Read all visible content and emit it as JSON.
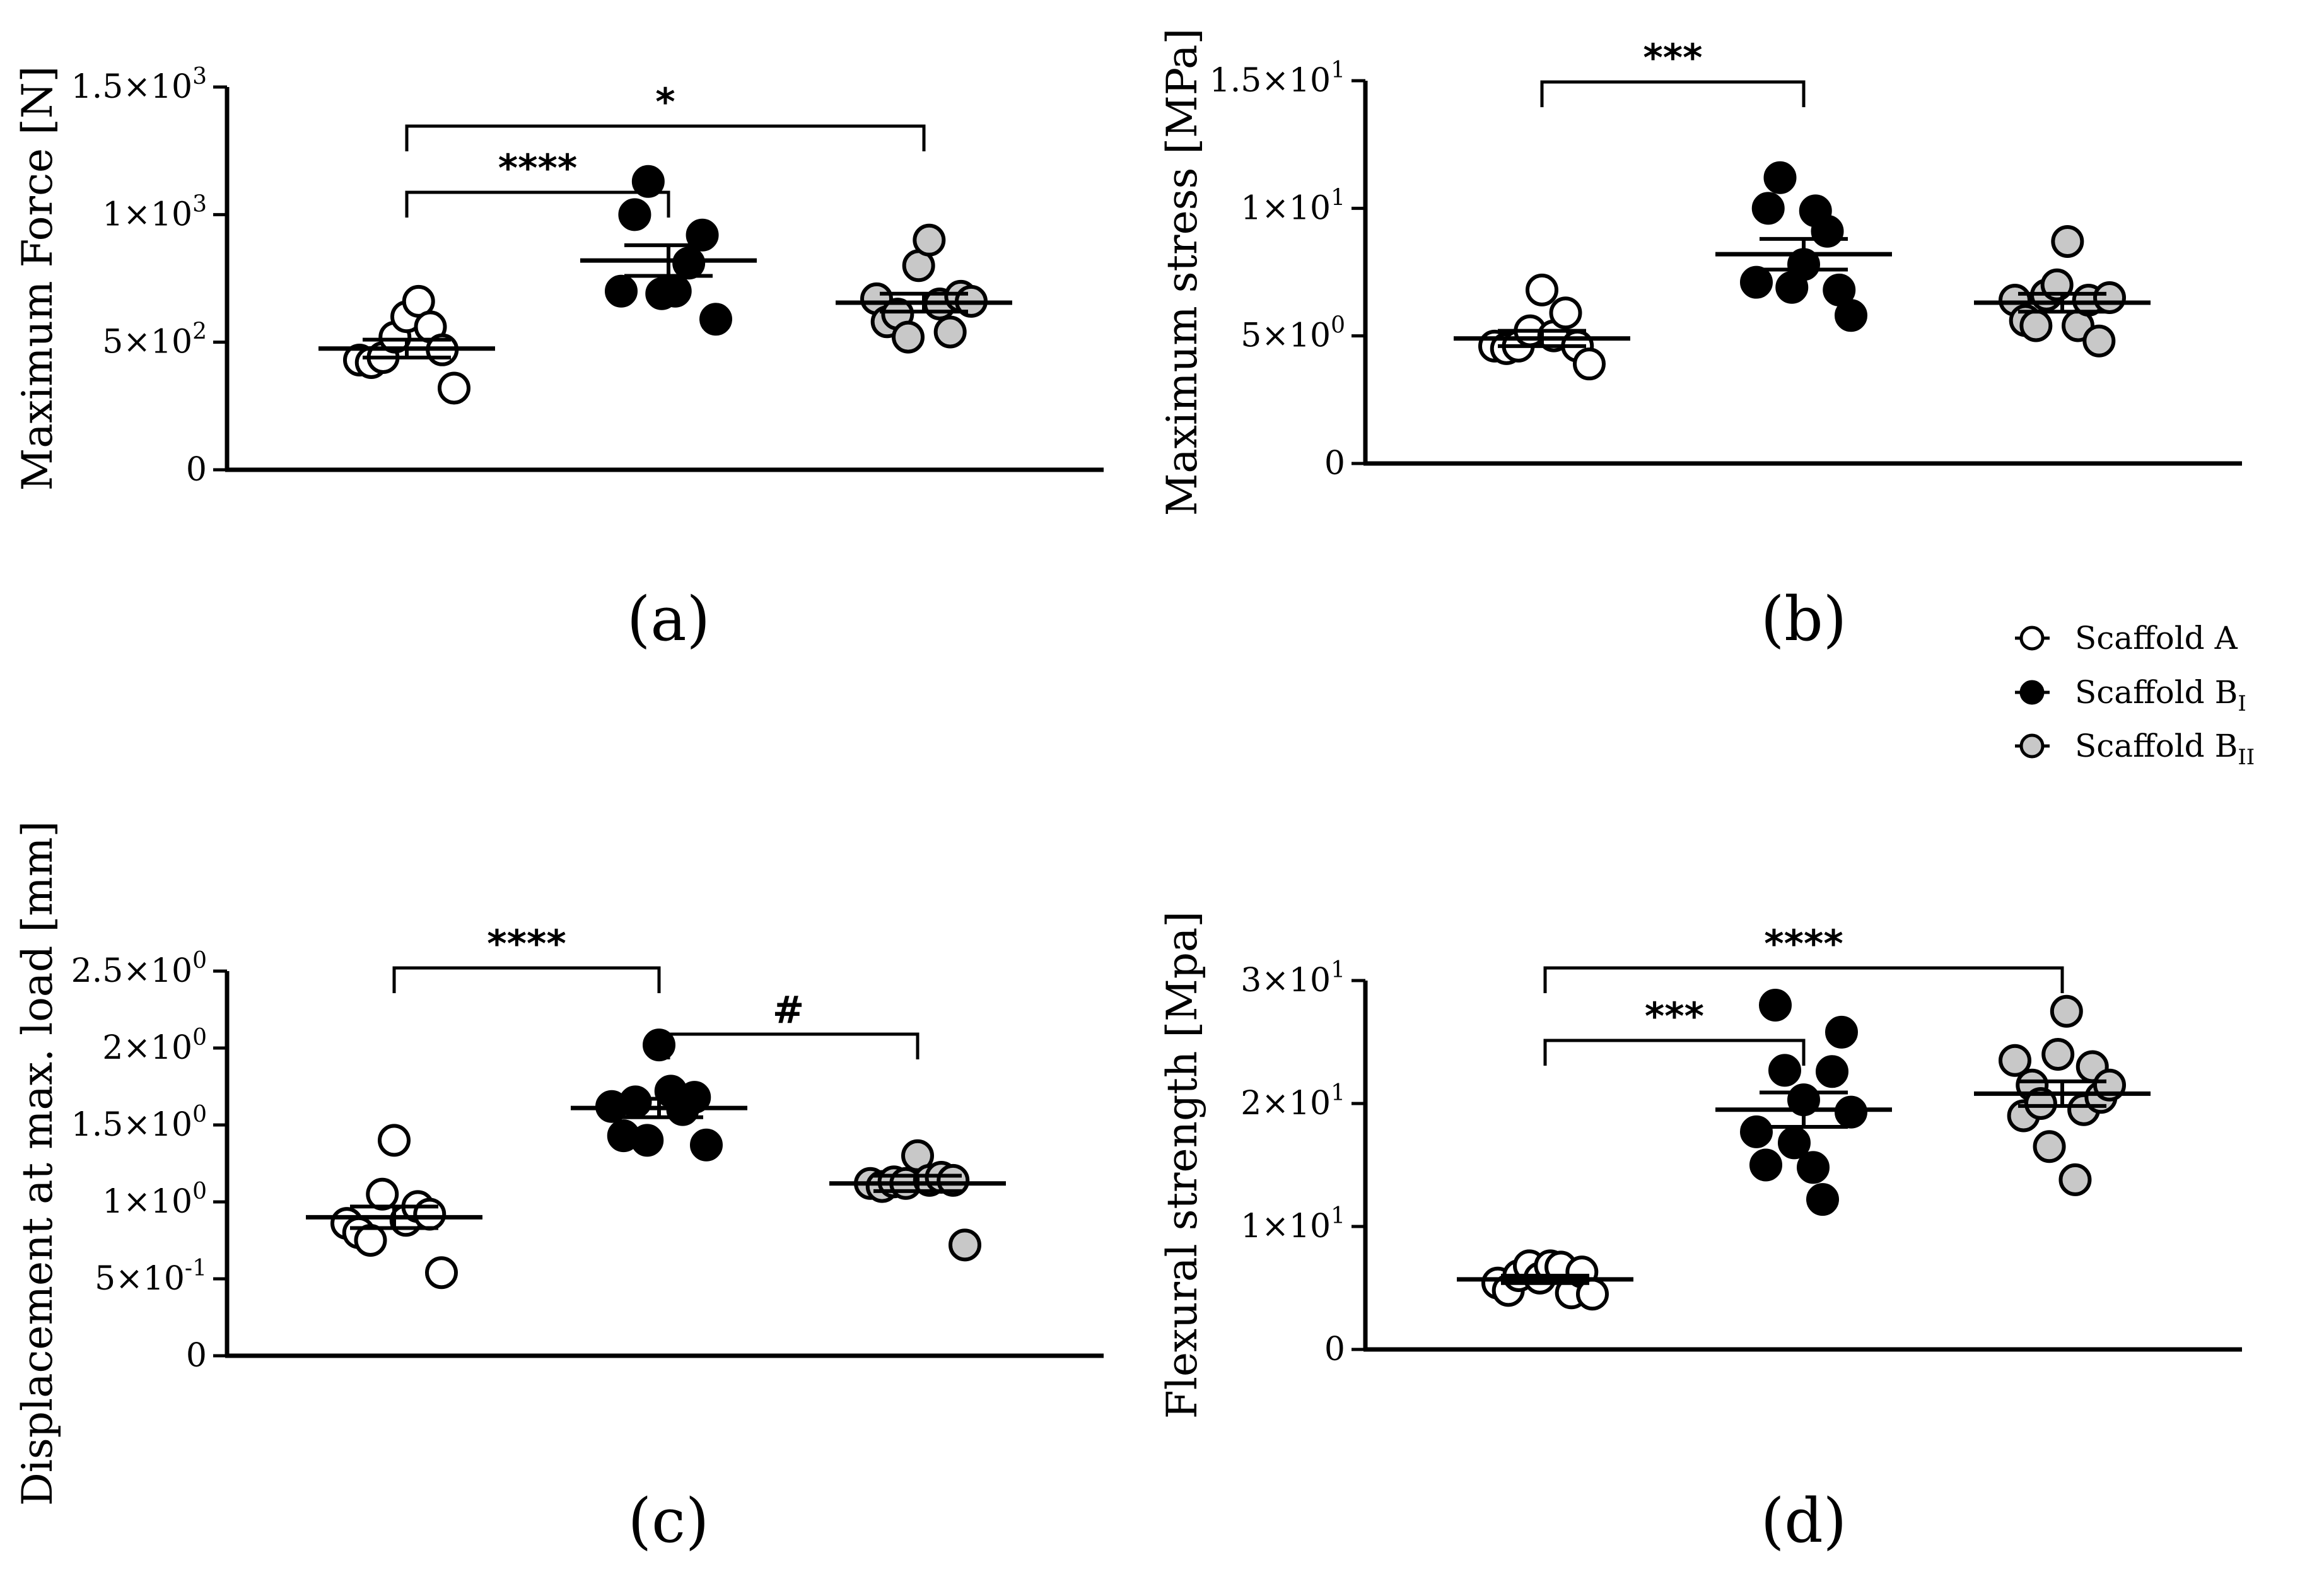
{
  "legend": [
    {
      "label": "Scaffold A",
      "base": "Scaffold A",
      "sub": "",
      "fill": "#ffffff"
    },
    {
      "label": "Scaffold BI",
      "base": "Scaffold B",
      "sub": "I",
      "fill": "#000000"
    },
    {
      "label": "Scaffold BII",
      "base": "Scaffold B",
      "sub": "II",
      "fill": "#c8c8c8"
    }
  ],
  "colors": {
    "scaffold_a": "#ffffff",
    "scaffold_b1": "#000000",
    "scaffold_b2": "#c8c8c8",
    "stroke": "#000000"
  },
  "chart_data": [
    {
      "type": "scatter",
      "panel": "(a)",
      "ylabel": "Maximum Force [N]",
      "ylim": [
        0,
        1500
      ],
      "yticks": [
        {
          "value": 0,
          "base": "0",
          "exp": ""
        },
        {
          "value": 500,
          "base": "5×10",
          "exp": "2"
        },
        {
          "value": 1000,
          "base": "1×10",
          "exp": "3"
        },
        {
          "value": 1500,
          "base": "1.5×10",
          "exp": "3"
        }
      ],
      "series": [
        {
          "name": "Scaffold A",
          "color": "#ffffff",
          "values": [
            430,
            420,
            440,
            520,
            600,
            660,
            560,
            470,
            320
          ],
          "mean": 475,
          "sem": 35
        },
        {
          "name": "Scaffold BI",
          "color": "#000000",
          "values": [
            700,
            1000,
            1130,
            690,
            700,
            810,
            920,
            590
          ],
          "mean": 820,
          "sem": 60
        },
        {
          "name": "Scaffold BII",
          "color": "#c8c8c8",
          "values": [
            670,
            580,
            610,
            520,
            800,
            900,
            650,
            540,
            680,
            660
          ],
          "mean": 655,
          "sem": 35
        }
      ],
      "significance": [
        {
          "from": 0,
          "to": 1,
          "label": "****",
          "level": 0
        },
        {
          "from": 0,
          "to": 2,
          "label": "*",
          "level": 1
        }
      ]
    },
    {
      "type": "scatter",
      "panel": "(b)",
      "ylabel": "Maximum stress [MPa]",
      "ylim": [
        0,
        15
      ],
      "yticks": [
        {
          "value": 0,
          "base": "0",
          "exp": ""
        },
        {
          "value": 5,
          "base": "5×10",
          "exp": "0"
        },
        {
          "value": 10,
          "base": "1×10",
          "exp": "1"
        },
        {
          "value": 15,
          "base": "1.5×10",
          "exp": "1"
        }
      ],
      "series": [
        {
          "name": "Scaffold A",
          "color": "#ffffff",
          "values": [
            4.6,
            4.5,
            4.6,
            5.2,
            6.8,
            5.0,
            5.9,
            4.6,
            3.9
          ],
          "mean": 4.9,
          "sem": 0.3
        },
        {
          "name": "Scaffold BI",
          "color": "#000000",
          "values": [
            7.1,
            10.0,
            11.2,
            6.9,
            7.8,
            9.9,
            9.1,
            6.8,
            5.8
          ],
          "mean": 8.2,
          "sem": 0.6
        },
        {
          "name": "Scaffold BII",
          "color": "#c8c8c8",
          "values": [
            6.4,
            5.6,
            5.4,
            6.6,
            7.0,
            8.7,
            5.4,
            6.4,
            4.8,
            6.5
          ],
          "mean": 6.3,
          "sem": 0.35
        }
      ],
      "significance": [
        {
          "from": 0,
          "to": 1,
          "label": "***",
          "level": 0
        }
      ]
    },
    {
      "type": "scatter",
      "panel": "(c)",
      "ylabel": "Displacement at max. load [mm]",
      "ylim": [
        0,
        2.5
      ],
      "yticks": [
        {
          "value": 0,
          "base": "0",
          "exp": ""
        },
        {
          "value": 0.5,
          "base": "5×10",
          "exp": "-1"
        },
        {
          "value": 1.0,
          "base": "1×10",
          "exp": "0"
        },
        {
          "value": 1.5,
          "base": "1.5×10",
          "exp": "0"
        },
        {
          "value": 2.0,
          "base": "2×10",
          "exp": "0"
        },
        {
          "value": 2.5,
          "base": "2.5×10",
          "exp": "0"
        }
      ],
      "series": [
        {
          "name": "Scaffold A",
          "color": "#ffffff",
          "values": [
            0.86,
            0.8,
            0.75,
            1.05,
            1.4,
            0.88,
            0.97,
            0.92,
            0.54
          ],
          "mean": 0.9,
          "sem": 0.07
        },
        {
          "name": "Scaffold BI",
          "color": "#000000",
          "values": [
            1.62,
            1.43,
            1.65,
            1.4,
            2.02,
            1.72,
            1.6,
            1.68,
            1.37
          ],
          "mean": 1.61,
          "sem": 0.06
        },
        {
          "name": "Scaffold BII",
          "color": "#c8c8c8",
          "values": [
            1.12,
            1.1,
            1.13,
            1.12,
            1.3,
            1.14,
            1.16,
            1.14,
            0.72
          ],
          "mean": 1.12,
          "sem": 0.05
        }
      ],
      "significance": [
        {
          "from": 0,
          "to": 1,
          "label": "****",
          "level": 1
        },
        {
          "from": 1,
          "to": 2,
          "label": "#",
          "level": 0
        }
      ]
    },
    {
      "type": "scatter",
      "panel": "(d)",
      "ylabel": "Flexural strength [Mpa]",
      "ylim": [
        0,
        30
      ],
      "yticks": [
        {
          "value": 0,
          "base": "0",
          "exp": ""
        },
        {
          "value": 10,
          "base": "1×10",
          "exp": "1"
        },
        {
          "value": 20,
          "base": "2×10",
          "exp": "1"
        },
        {
          "value": 30,
          "base": "3×10",
          "exp": "1"
        }
      ],
      "series": [
        {
          "name": "Scaffold A",
          "color": "#ffffff",
          "values": [
            5.4,
            4.8,
            6.0,
            6.8,
            5.8,
            6.8,
            6.7,
            4.6,
            6.3,
            4.5
          ],
          "mean": 5.7,
          "sem": 0.3
        },
        {
          "name": "Scaffold BI",
          "color": "#000000",
          "values": [
            17.7,
            15.0,
            28.0,
            22.7,
            16.8,
            20.3,
            14.8,
            12.2,
            22.6,
            25.8,
            19.3
          ],
          "mean": 19.5,
          "sem": 1.4
        },
        {
          "name": "Scaffold BII",
          "color": "#c8c8c8",
          "values": [
            23.5,
            19.0,
            21.5,
            20.0,
            16.5,
            24.0,
            27.5,
            13.8,
            19.5,
            23.0,
            20.5,
            21.5
          ],
          "mean": 20.8,
          "sem": 1.0
        }
      ],
      "significance": [
        {
          "from": 0,
          "to": 1,
          "label": "***",
          "level": 0
        },
        {
          "from": 0,
          "to": 2,
          "label": "****",
          "level": 1
        }
      ]
    }
  ]
}
